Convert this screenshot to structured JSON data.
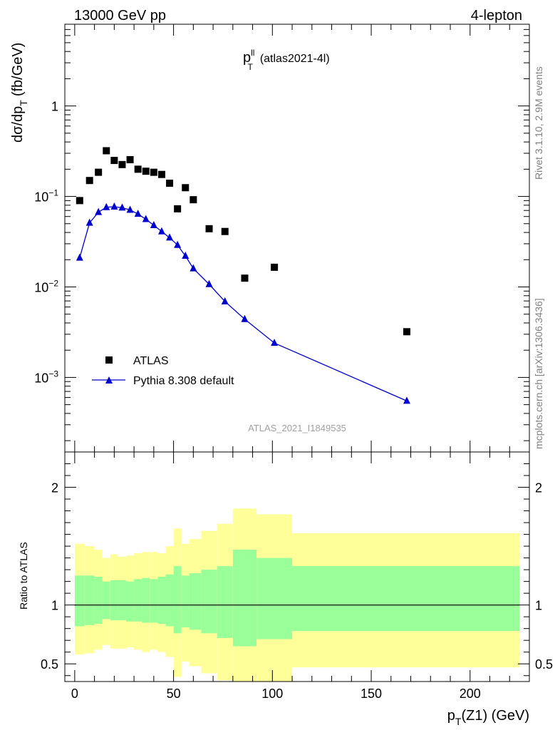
{
  "header": {
    "left": "13000 GeV pp",
    "right": "4-lepton"
  },
  "side_text": {
    "rivet": "Rivet 3.1.10,  2.9M events",
    "mcplots": "mcplots.cern.ch [arXiv:1306.3436]"
  },
  "watermark": "ATLAS_2021_I1849535",
  "chart_data": [
    {
      "type": "scatter",
      "title_main": "p",
      "title_sup": "ll",
      "title_sub": "T",
      "title_suffix": "(atlas2021-4l)",
      "ylabel_main": "dσ/dp",
      "ylabel_sub": "T",
      "ylabel_suffix": "(fb/GeV)",
      "yscale": "log",
      "ylim": [
        0.00015,
        8
      ],
      "xlim": [
        -5,
        230
      ],
      "y_ticks": [
        {
          "value": 1,
          "label": "1"
        },
        {
          "value": 0.1,
          "label": "10",
          "exp": "−1"
        },
        {
          "value": 0.01,
          "label": "10",
          "exp": "−2"
        },
        {
          "value": 0.001,
          "label": "10",
          "exp": "−3"
        }
      ],
      "legend_position": "lower-left",
      "series": [
        {
          "name": "ATLAS",
          "marker": "square",
          "color": "#000000",
          "x": [
            2.5,
            7.5,
            12,
            16,
            20,
            24,
            28,
            32,
            36,
            40,
            44,
            48,
            52,
            56,
            60,
            68,
            76,
            86,
            101,
            168
          ],
          "y": [
            0.09,
            0.15,
            0.185,
            0.32,
            0.25,
            0.225,
            0.255,
            0.2,
            0.19,
            0.185,
            0.175,
            0.14,
            0.073,
            0.125,
            0.092,
            0.044,
            0.041,
            0.0125,
            0.0165,
            0.0032
          ]
        },
        {
          "name": "Pythia 8.308 default",
          "marker": "triangle",
          "color": "#0000cc",
          "x": [
            2.5,
            7.5,
            12,
            16,
            20,
            24,
            28,
            32,
            36,
            40,
            44,
            48,
            52,
            56,
            60,
            68,
            76,
            86,
            101,
            168
          ],
          "y": [
            0.021,
            0.051,
            0.067,
            0.076,
            0.077,
            0.075,
            0.071,
            0.064,
            0.056,
            0.048,
            0.041,
            0.035,
            0.029,
            0.022,
            0.016,
            0.0107,
            0.0069,
            0.0044,
            0.0024,
            0.00055
          ]
        }
      ]
    },
    {
      "type": "area",
      "ylabel": "Ratio to ATLAS",
      "xlabel_main": "p",
      "xlabel_sub": "T",
      "xlabel_suffix": "(Z1) (GeV)",
      "ylim": [
        0.35,
        2.3
      ],
      "xlim": [
        -5,
        230
      ],
      "x_ticks": [
        0,
        50,
        100,
        150,
        200
      ],
      "y_ticks": [
        0.5,
        1,
        2
      ],
      "reference_line": 1,
      "band_colors": {
        "outer": "#ffff99",
        "inner": "#99ff99",
        "line": "#000000"
      },
      "bins": [
        {
          "x0": 0,
          "x1": 5,
          "outer_lo": 0.58,
          "outer_hi": 1.52,
          "inner_lo": 0.82,
          "inner_hi": 1.25
        },
        {
          "x0": 5,
          "x1": 10,
          "outer_lo": 0.59,
          "outer_hi": 1.5,
          "inner_lo": 0.83,
          "inner_hi": 1.25
        },
        {
          "x0": 10,
          "x1": 14,
          "outer_lo": 0.62,
          "outer_hi": 1.47,
          "inner_lo": 0.84,
          "inner_hi": 1.24
        },
        {
          "x0": 14,
          "x1": 18,
          "outer_lo": 0.66,
          "outer_hi": 1.4,
          "inner_lo": 0.88,
          "inner_hi": 1.2
        },
        {
          "x0": 18,
          "x1": 22,
          "outer_lo": 0.63,
          "outer_hi": 1.43,
          "inner_lo": 0.87,
          "inner_hi": 1.21
        },
        {
          "x0": 22,
          "x1": 26,
          "outer_lo": 0.63,
          "outer_hi": 1.41,
          "inner_lo": 0.87,
          "inner_hi": 1.21
        },
        {
          "x0": 26,
          "x1": 30,
          "outer_lo": 0.64,
          "outer_hi": 1.42,
          "inner_lo": 0.86,
          "inner_hi": 1.2
        },
        {
          "x0": 30,
          "x1": 34,
          "outer_lo": 0.62,
          "outer_hi": 1.44,
          "inner_lo": 0.86,
          "inner_hi": 1.22
        },
        {
          "x0": 34,
          "x1": 38,
          "outer_lo": 0.6,
          "outer_hi": 1.45,
          "inner_lo": 0.85,
          "inner_hi": 1.23
        },
        {
          "x0": 38,
          "x1": 42,
          "outer_lo": 0.62,
          "outer_hi": 1.45,
          "inner_lo": 0.85,
          "inner_hi": 1.22
        },
        {
          "x0": 42,
          "x1": 46,
          "outer_lo": 0.6,
          "outer_hi": 1.44,
          "inner_lo": 0.84,
          "inner_hi": 1.24
        },
        {
          "x0": 46,
          "x1": 50,
          "outer_lo": 0.56,
          "outer_hi": 1.5,
          "inner_lo": 0.82,
          "inner_hi": 1.26
        },
        {
          "x0": 50,
          "x1": 54,
          "outer_lo": 0.39,
          "outer_hi": 1.65,
          "inner_lo": 0.76,
          "inner_hi": 1.33
        },
        {
          "x0": 54,
          "x1": 58,
          "outer_lo": 0.52,
          "outer_hi": 1.52,
          "inner_lo": 0.81,
          "inner_hi": 1.25
        },
        {
          "x0": 58,
          "x1": 64,
          "outer_lo": 0.48,
          "outer_hi": 1.56,
          "inner_lo": 0.79,
          "inner_hi": 1.27
        },
        {
          "x0": 64,
          "x1": 72,
          "outer_lo": 0.42,
          "outer_hi": 1.63,
          "inner_lo": 0.76,
          "inner_hi": 1.3
        },
        {
          "x0": 72,
          "x1": 80,
          "outer_lo": 0.36,
          "outer_hi": 1.69,
          "inner_lo": 0.72,
          "inner_hi": 1.33
        },
        {
          "x0": 80,
          "x1": 92,
          "outer_lo": 0.33,
          "outer_hi": 1.82,
          "inner_lo": 0.65,
          "inner_hi": 1.47
        },
        {
          "x0": 92,
          "x1": 110,
          "outer_lo": 0.33,
          "outer_hi": 1.77,
          "inner_lo": 0.71,
          "inner_hi": 1.4
        },
        {
          "x0": 110,
          "x1": 225,
          "outer_lo": 0.47,
          "outer_hi": 1.61,
          "inner_lo": 0.78,
          "inner_hi": 1.33
        }
      ]
    }
  ]
}
